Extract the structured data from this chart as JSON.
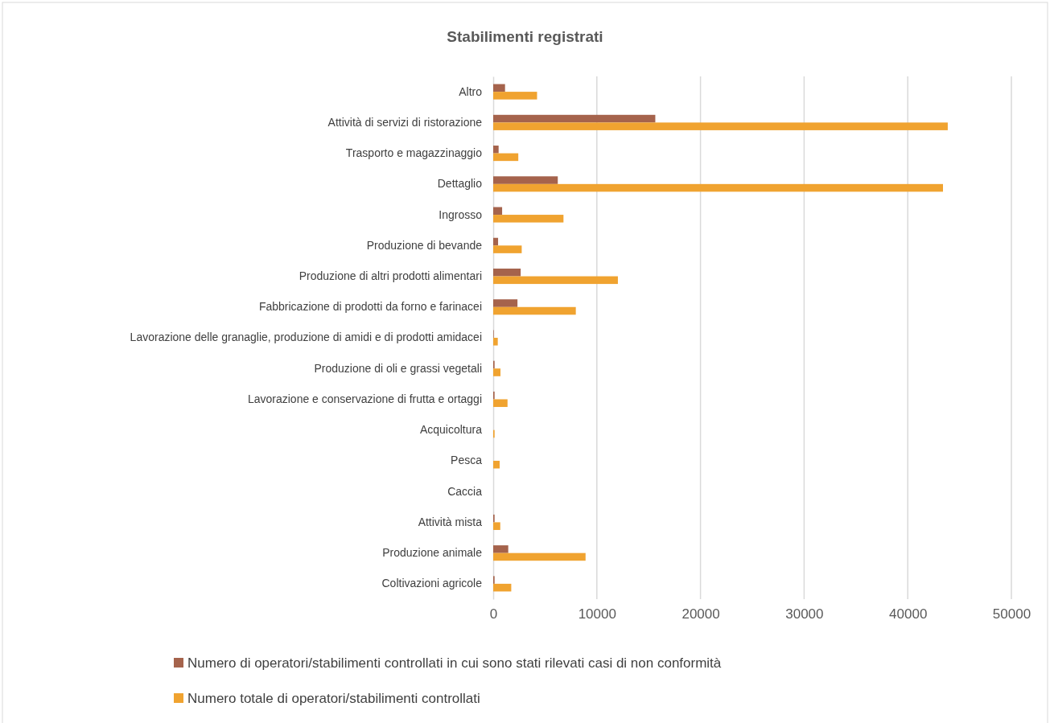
{
  "chart_data": {
    "type": "bar",
    "orientation": "horizontal",
    "title": "Stabilimenti registrati",
    "categories": [
      "Altro",
      "Attività di servizi di ristorazione",
      "Trasporto e magazzinaggio",
      "Dettaglio",
      "Ingrosso",
      "Produzione di bevande",
      "Produzione di altri prodotti alimentari",
      "Fabbricazione di prodotti da forno e farinacei",
      "Lavorazione delle granaglie, produzione di amidi e di prodotti amidacei",
      "Produzione di oli e grassi vegetali",
      "Lavorazione e conservazione di frutta e ortaggi",
      "Acquicoltura",
      "Pesca",
      "Caccia",
      "Attività mista",
      "Produzione animale",
      "Coltivazioni agricole"
    ],
    "series": [
      {
        "name": "Numero di operatori/stabilimenti controllati in cui sono stati rilevati casi di non conformità",
        "color": "#a5634c",
        "values": [
          1140,
          15640,
          520,
          6230,
          860,
          470,
          2650,
          2340,
          50,
          130,
          130,
          null,
          null,
          null,
          130,
          1450,
          130
        ]
      },
      {
        "name": "Numero totale di operatori/stabilimenti controllati",
        "color": "#f0a330",
        "values": [
          4230,
          43860,
          2420,
          43400,
          6780,
          2750,
          12030,
          7970,
          440,
          700,
          1380,
          130,
          620,
          null,
          680,
          8910,
          1740
        ]
      }
    ],
    "xlim": [
      0,
      50000
    ],
    "xticks": [
      0,
      10000,
      20000,
      30000,
      40000,
      50000
    ],
    "grid": "x",
    "legend": "bottom"
  }
}
